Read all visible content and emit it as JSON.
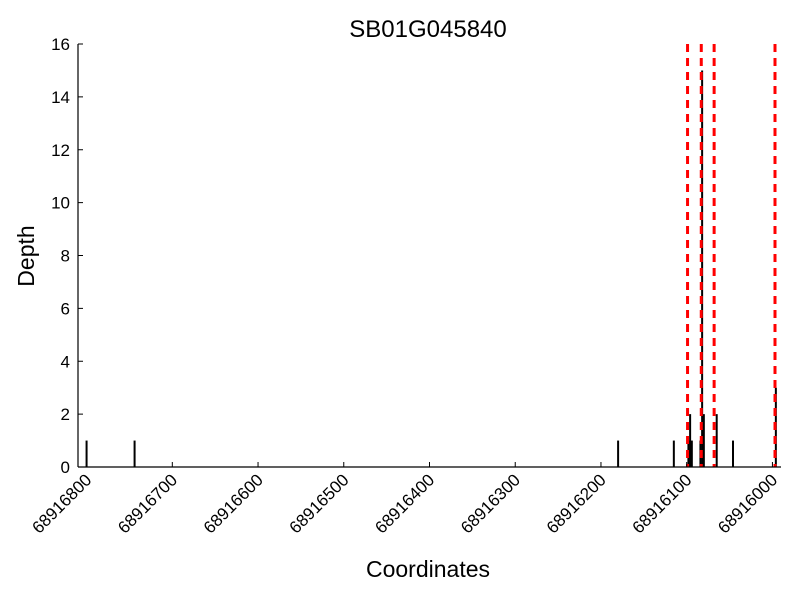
{
  "chart_data": {
    "type": "bar",
    "title": "SB01G045840",
    "xlabel": "Coordinates",
    "ylabel": "Depth",
    "x_reversed": true,
    "xlim": [
      68916810,
      68915990
    ],
    "ylim": [
      0,
      16
    ],
    "xticks": [
      68916800,
      68916700,
      68916600,
      68916500,
      68916400,
      68916300,
      68916200,
      68916100,
      68916000
    ],
    "yticks": [
      0,
      2,
      4,
      6,
      8,
      10,
      12,
      14,
      16
    ],
    "grid": false,
    "bars": [
      {
        "x": 68916800,
        "y": 1
      },
      {
        "x": 68916744,
        "y": 1
      },
      {
        "x": 68916180,
        "y": 1
      },
      {
        "x": 68916115,
        "y": 1
      },
      {
        "x": 68916098,
        "y": 1
      },
      {
        "x": 68916096,
        "y": 2
      },
      {
        "x": 68916094,
        "y": 1
      },
      {
        "x": 68916084,
        "y": 1
      },
      {
        "x": 68916082,
        "y": 15
      },
      {
        "x": 68916080,
        "y": 2
      },
      {
        "x": 68916065,
        "y": 2
      },
      {
        "x": 68916046,
        "y": 1
      },
      {
        "x": 68915996,
        "y": 3
      }
    ],
    "vlines": [
      68916099,
      68916083,
      68916068,
      68915997
    ],
    "vline_color": "#ff0000",
    "bar_color": "#000000"
  }
}
